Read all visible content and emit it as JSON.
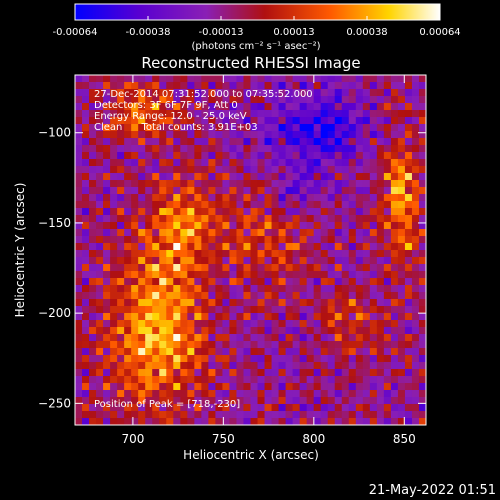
{
  "chart_data": {
    "type": "heatmap",
    "title": "Reconstructed RHESSI Image",
    "xlabel": "Heliocentric X (arcsec)",
    "ylabel": "Heliocentric Y (arcsec)",
    "xlim": [
      668,
      862
    ],
    "ylim": [
      -262,
      -68
    ],
    "x_ticks": [
      700,
      750,
      800,
      850
    ],
    "y_ticks": [
      -250,
      -200,
      -150,
      -100
    ],
    "colorbar": {
      "ticks": [
        "-0.00064",
        "-0.00038",
        "-0.00013",
        "0.00013",
        "0.00038",
        "0.00064"
      ],
      "range": [
        -0.00064,
        0.00064
      ],
      "units_line": "(photons cm⁻² s⁻¹ asec⁻²)",
      "colors": [
        "#0000ff",
        "#5a00d0",
        "#8a1fb5",
        "#b01010",
        "#ff5a00",
        "#ffd400",
        "#ffffff"
      ]
    },
    "annotations": [
      "27-Dec-2014 07:31:52.000 to 07:35:52.000",
      "Detectors: 3F 6F 7F 9F, Att 0",
      "Energy Range: 12.0 - 25.0 keV",
      "Clean      Total counts: 3.91E+03"
    ],
    "peak_label": "Position of Peak = [718,-230]",
    "peak": [
      718,
      -230
    ]
  },
  "footer": {
    "timestamp": "21-May-2022 01:51"
  }
}
